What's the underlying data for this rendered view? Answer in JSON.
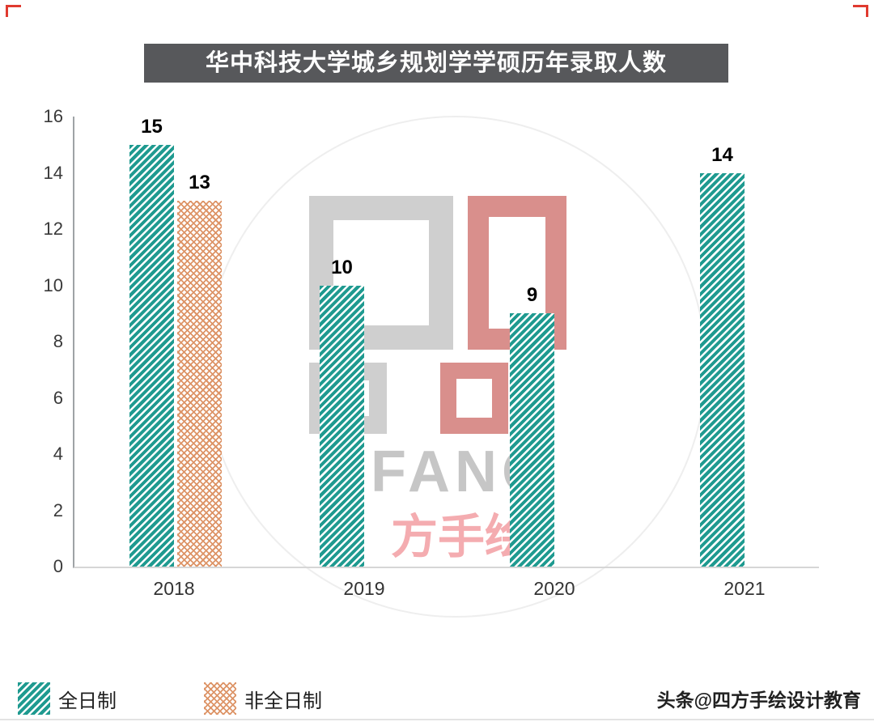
{
  "chart_data": {
    "type": "bar",
    "title": "华中科技大学城乡规划学学硕历年录取人数",
    "categories": [
      "2018",
      "2019",
      "2020",
      "2021"
    ],
    "series": [
      {
        "name": "全日制",
        "values": [
          15,
          10,
          9,
          14
        ],
        "color": "#1f9a90",
        "pattern": "diagonal-stripes"
      },
      {
        "name": "非全日制",
        "values": [
          13,
          null,
          null,
          null
        ],
        "color": "#dd9467",
        "pattern": "crosshatch"
      }
    ],
    "ylim": [
      0,
      16
    ],
    "yticks": [
      0,
      2,
      4,
      6,
      8,
      10,
      12,
      14,
      16
    ],
    "grid": false,
    "legend_position": "bottom-left"
  },
  "watermark": {
    "text_latin": "FANG",
    "text_cn": "方手绘"
  },
  "credit": "头条@四方手绘设计教育"
}
